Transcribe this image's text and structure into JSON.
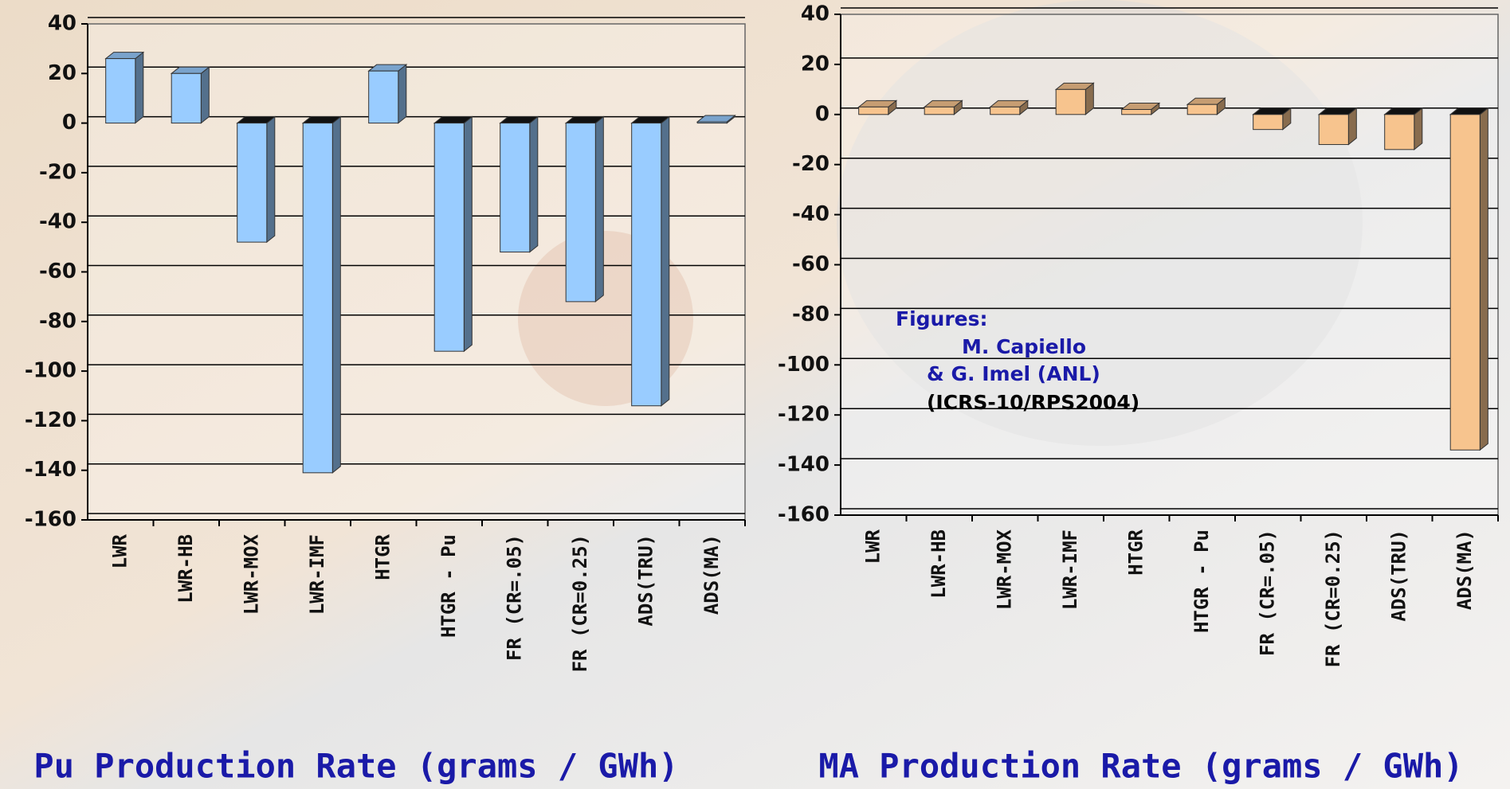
{
  "chart_data": [
    {
      "type": "bar",
      "title": "Pu Production Rate (grams / GWh)",
      "categories": [
        "LWR",
        "LWR-HB",
        "LWR-MOX",
        "LWR-IMF",
        "HTGR",
        "HTGR - Pu",
        "FR (CR=.05)",
        "FR (CR=0.25)",
        "ADS(TRU)",
        "ADS(MA)"
      ],
      "values": [
        26,
        20,
        -48,
        -141,
        21,
        -92,
        -52,
        -72,
        -114,
        0.5
      ],
      "color": "#99ccff",
      "ylim": [
        -160,
        40
      ],
      "yticks": [
        -160,
        -140,
        -120,
        -100,
        -80,
        -60,
        -40,
        -20,
        0,
        20,
        40
      ],
      "grid": true
    },
    {
      "type": "bar",
      "title": "MA Production Rate (grams / GWh)",
      "categories": [
        "LWR",
        "LWR-HB",
        "LWR-MOX",
        "LWR-IMF",
        "HTGR",
        "HTGR - Pu",
        "FR (CR=.05)",
        "FR (CR=0.25)",
        "ADS(TRU)",
        "ADS(MA)"
      ],
      "values": [
        3,
        3,
        3,
        10,
        2,
        4,
        -6,
        -12,
        -14,
        -134
      ],
      "color": "#f7c48e",
      "ylim": [
        -160,
        40
      ],
      "yticks": [
        -160,
        -140,
        -120,
        -100,
        -80,
        -60,
        -40,
        -20,
        0,
        20,
        40
      ],
      "grid": true,
      "annotations": [
        "Figures:",
        "M. Capiello",
        "&  G. Imel (ANL)",
        "(ICRS-10/RPS2004)"
      ]
    }
  ]
}
